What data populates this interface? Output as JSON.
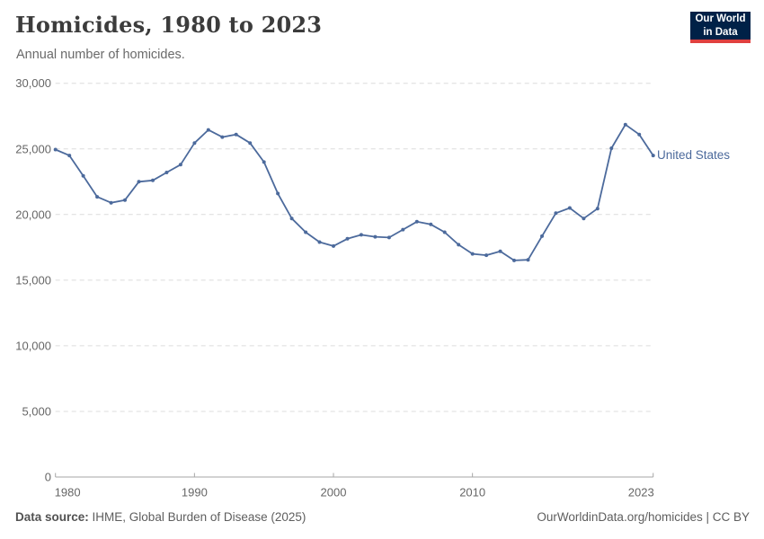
{
  "header": {
    "title": "Homicides, 1980 to 2023",
    "subtitle": "Annual number of homicides.",
    "logo": {
      "line1": "Our World",
      "line2": "in Data"
    }
  },
  "chart_data": {
    "type": "line",
    "title": "Homicides, 1980 to 2023",
    "subtitle": "Annual number of homicides.",
    "xlabel": "",
    "ylabel": "",
    "x": [
      1980,
      1981,
      1982,
      1983,
      1984,
      1985,
      1986,
      1987,
      1988,
      1989,
      1990,
      1991,
      1992,
      1993,
      1994,
      1995,
      1996,
      1997,
      1998,
      1999,
      2000,
      2001,
      2002,
      2003,
      2004,
      2005,
      2006,
      2007,
      2008,
      2009,
      2010,
      2011,
      2012,
      2013,
      2014,
      2015,
      2016,
      2017,
      2018,
      2019,
      2020,
      2021,
      2022,
      2023
    ],
    "series": [
      {
        "name": "United States",
        "color": "#4C6A9C",
        "values": [
          24950,
          24500,
          22950,
          21350,
          20900,
          21100,
          22500,
          22600,
          23200,
          23800,
          25450,
          26450,
          25900,
          26100,
          25450,
          24000,
          21600,
          19700,
          18650,
          17900,
          17600,
          18150,
          18450,
          18300,
          18250,
          18850,
          19450,
          19250,
          18650,
          17700,
          17000,
          16900,
          17200,
          16500,
          16550,
          18350,
          20100,
          20500,
          19700,
          20450,
          25050,
          26850,
          26100,
          24500
        ]
      }
    ],
    "ylim": [
      0,
      30000
    ],
    "yticks": [
      0,
      5000,
      10000,
      15000,
      20000,
      25000,
      30000
    ],
    "xticks": [
      1980,
      1990,
      2000,
      2010,
      2023
    ],
    "grid": "horizontal-dashed",
    "legend_position": "end-of-line-label"
  },
  "colors": {
    "series_blue": "#4C6A9C",
    "gridline": "#dcdcdc",
    "axis": "#a6a6a6",
    "tick_text": "#666666",
    "logo_background": "#002147",
    "logo_underline": "#e0403f"
  },
  "footer": {
    "source_label": "Data source:",
    "source_text": "IHME, Global Burden of Disease (2025)",
    "citation": "OurWorldinData.org/homicides | CC BY"
  }
}
